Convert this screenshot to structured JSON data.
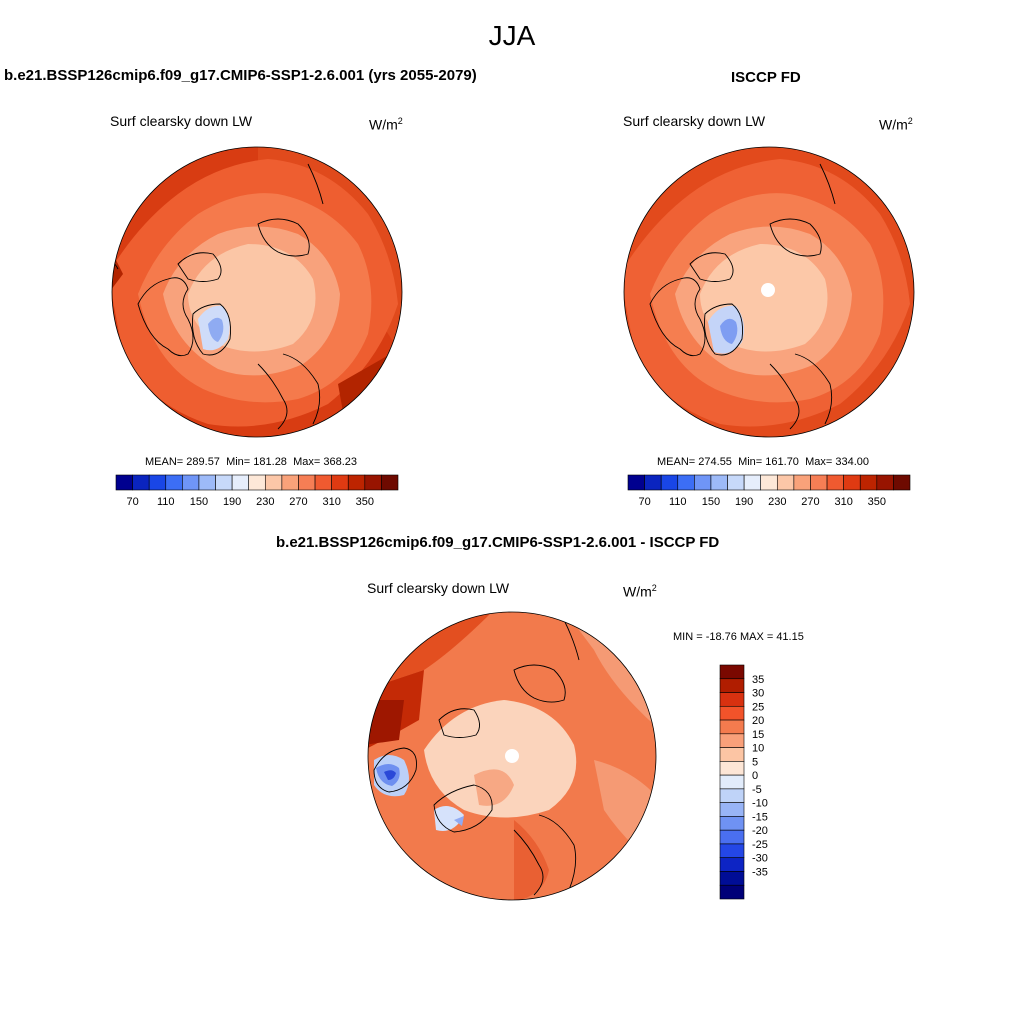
{
  "figure": {
    "season": "JJA",
    "units_base": "W/m",
    "units_exp": "2",
    "variable": "Surf clearsky down LW"
  },
  "panels": [
    {
      "title": "b.e21.BSSP126cmip6.f09_g17.CMIP6-SSP1-2.6.001 (yrs 2055-2079)",
      "variable": "Surf clearsky down LW",
      "stats": {
        "mean_label": "MEAN=",
        "mean": "289.57",
        "min_label": "Min=",
        "min": "181.28",
        "max_label": "Max=",
        "max": "368.23"
      }
    },
    {
      "title": "ISCCP FD",
      "variable": "Surf clearsky down LW",
      "stats": {
        "mean_label": "MEAN=",
        "mean": "274.55",
        "min_label": "Min=",
        "min": "161.70",
        "max_label": "Max=",
        "max": "334.00"
      }
    },
    {
      "title": "b.e21.BSSP126cmip6.f09_g17.CMIP6-SSP1-2.6.001 - ISCCP FD",
      "variable": "Surf clearsky down LW",
      "stats_text": "MIN = -18.76 MAX =  41.15"
    }
  ],
  "colorbar_horizontal": {
    "colors": [
      "#00008f",
      "#0a24bf",
      "#1946e6",
      "#3c6ef5",
      "#6f95f7",
      "#9dbaf8",
      "#c7d9fa",
      "#e6eefc",
      "#fde8d8",
      "#fcc7a8",
      "#f9a27a",
      "#f67e55",
      "#f05a30",
      "#df3a12",
      "#bd2400",
      "#981400",
      "#6e0a00"
    ],
    "tick_labels": [
      "70",
      "110",
      "150",
      "190",
      "230",
      "270",
      "310",
      "350"
    ]
  },
  "colorbar_vertical": {
    "colors": [
      "#7a0800",
      "#b01d00",
      "#d83110",
      "#f2532a",
      "#f47b4e",
      "#f9a07a",
      "#fcc5a4",
      "#fde6d6",
      "#e2ecfb",
      "#bfd3f8",
      "#98b4f6",
      "#6f92f3",
      "#4a6ff0",
      "#2447e6",
      "#0d24c4",
      "#000d96",
      "#000078"
    ],
    "tick_labels": [
      "35",
      "30",
      "25",
      "20",
      "15",
      "10",
      "5",
      "0",
      "-5",
      "-10",
      "-15",
      "-20",
      "-25",
      "-30",
      "-35"
    ]
  },
  "chart_data": [
    {
      "type": "heatmap",
      "title": "b.e21.BSSP126cmip6.f09_g17.CMIP6-SSP1-2.6.001 (yrs 2055-2079)",
      "subtitle": "Surf clearsky down LW",
      "units": "W/m2",
      "projection": "north polar stereographic",
      "mean": 289.57,
      "min": 181.28,
      "max": 368.23,
      "levels": [
        70,
        90,
        110,
        130,
        150,
        170,
        190,
        210,
        230,
        250,
        270,
        290,
        310,
        330,
        350
      ],
      "legend_placement": "bottom"
    },
    {
      "type": "heatmap",
      "title": "ISCCP FD",
      "subtitle": "Surf clearsky down LW",
      "units": "W/m2",
      "projection": "north polar stereographic",
      "mean": 274.55,
      "min": 161.7,
      "max": 334.0,
      "levels": [
        70,
        90,
        110,
        130,
        150,
        170,
        190,
        210,
        230,
        250,
        270,
        290,
        310,
        330,
        350
      ],
      "legend_placement": "bottom"
    },
    {
      "type": "heatmap",
      "title": "b.e21.BSSP126cmip6.f09_g17.CMIP6-SSP1-2.6.001 - ISCCP FD",
      "subtitle": "Surf clearsky down LW",
      "units": "W/m2",
      "projection": "north polar stereographic",
      "min": -18.76,
      "max": 41.15,
      "levels": [
        -35,
        -30,
        -25,
        -20,
        -15,
        -10,
        -5,
        0,
        5,
        10,
        15,
        20,
        25,
        30,
        35
      ],
      "legend_placement": "right"
    }
  ]
}
